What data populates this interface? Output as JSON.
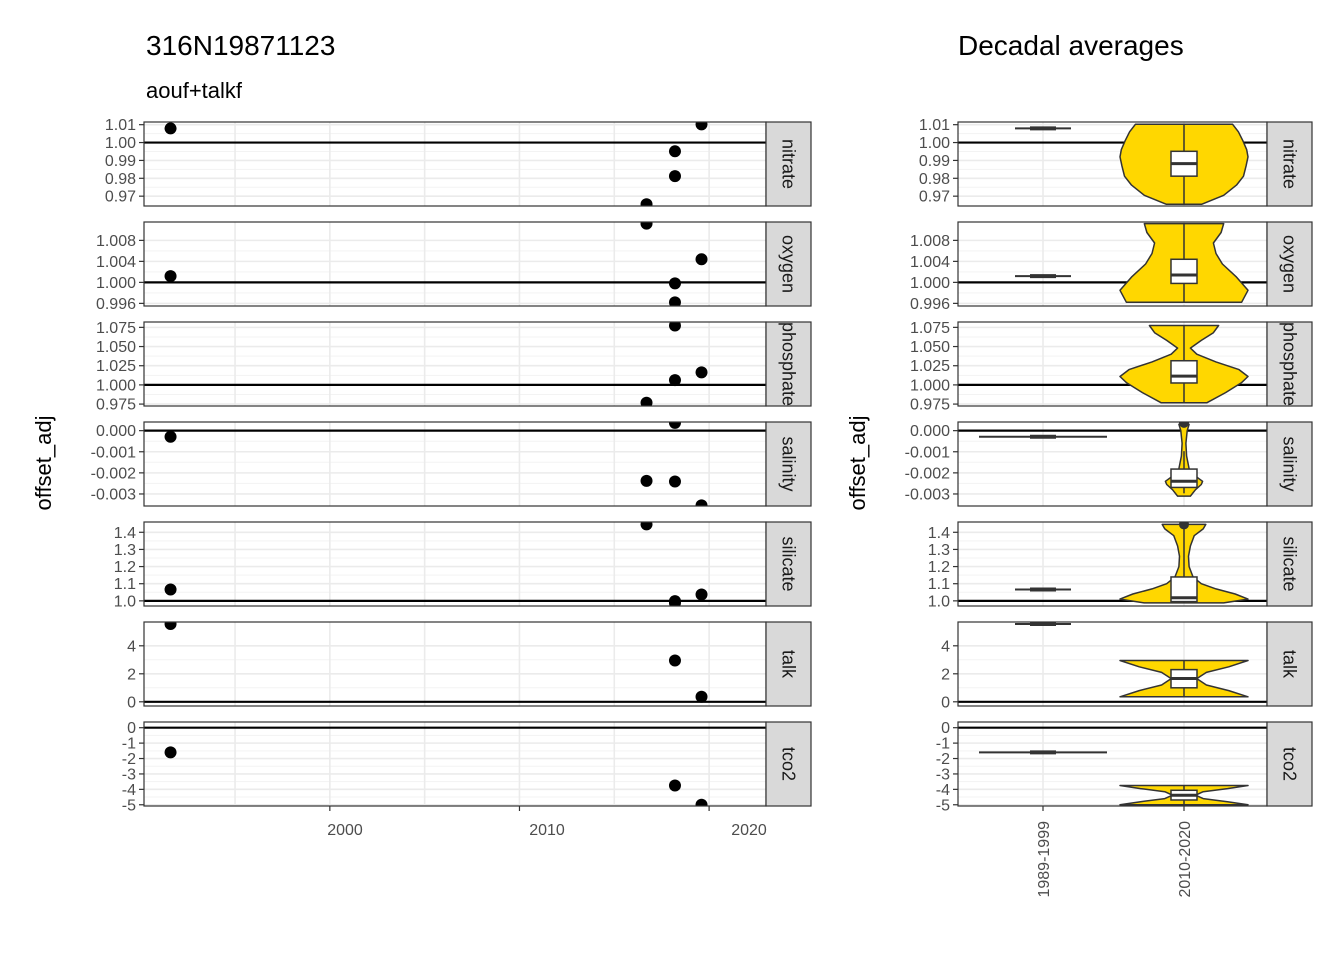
{
  "left": {
    "title": "316N19871123",
    "subtitle": "aouf+talkf",
    "ylabel": "offset_adj",
    "x_ticks": [
      "2000",
      "2010",
      "2020"
    ]
  },
  "right": {
    "title": "Decadal averages",
    "ylabel": "offset_adj",
    "x_ticks": [
      "1989-1999",
      "2010-2020"
    ]
  },
  "colors": {
    "fill": "#FFD700",
    "line": "#000000",
    "strip": "#d9d9d9",
    "grid": "#ebebeb"
  },
  "chart_data": [
    {
      "type": "scatter",
      "title": "316N19871123",
      "subtitle": "aouf+talkf",
      "xlabel": "",
      "ylabel": "offset_adj",
      "xlim": [
        1990.2,
        2023.0
      ],
      "x_ticks": [
        2000,
        2010,
        2020
      ],
      "reference_line": "y = 1 for ratio parameters, y = 0 for additive parameters",
      "facets": [
        {
          "name": "nitrate",
          "ylim": [
            0.9645,
            1.0115
          ],
          "yticks": [
            0.97,
            0.98,
            0.99,
            1.0,
            1.01
          ],
          "ytick_labels": [
            "0.97",
            "0.98",
            "0.99",
            "1.00",
            "1.01"
          ],
          "ref": 1.0,
          "points": [
            {
              "x": 1991.6,
              "y": 1.0079
            },
            {
              "x": 2016.7,
              "y": 0.9655
            },
            {
              "x": 2018.2,
              "y": 0.9951
            },
            {
              "x": 2018.2,
              "y": 0.9812
            },
            {
              "x": 2019.6,
              "y": 1.0102
            }
          ]
        },
        {
          "name": "oxygen",
          "ylim": [
            0.9955,
            1.0115
          ],
          "yticks": [
            0.996,
            1.0,
            1.004,
            1.008
          ],
          "ytick_labels": [
            "0.996",
            "1.000",
            "1.004",
            "1.008"
          ],
          "ref": 1.0,
          "points": [
            {
              "x": 1991.6,
              "y": 1.0012
            },
            {
              "x": 2016.7,
              "y": 1.0112
            },
            {
              "x": 2018.2,
              "y": 0.9998
            },
            {
              "x": 2018.2,
              "y": 0.9962
            },
            {
              "x": 2019.6,
              "y": 1.0044
            }
          ]
        },
        {
          "name": "phosphate",
          "ylim": [
            0.9725,
            1.082
          ],
          "yticks": [
            0.975,
            1.0,
            1.025,
            1.05,
            1.075
          ],
          "ytick_labels": [
            "0.975",
            "1.000",
            "1.025",
            "1.050",
            "1.075"
          ],
          "ref": 1.0,
          "points": [
            {
              "x": 2016.7,
              "y": 0.9768
            },
            {
              "x": 2018.2,
              "y": 1.0775
            },
            {
              "x": 2018.2,
              "y": 1.0063
            },
            {
              "x": 2019.6,
              "y": 1.0164
            }
          ]
        },
        {
          "name": "salinity",
          "ylim": [
            -0.00357,
            0.00041
          ],
          "yticks": [
            -0.003,
            -0.002,
            -0.001,
            0.0
          ],
          "ytick_labels": [
            "-0.003",
            "-0.002",
            "-0.001",
            "0.000"
          ],
          "ref": 0.0,
          "points": [
            {
              "x": 1991.6,
              "y": -0.00029
            },
            {
              "x": 2016.7,
              "y": -0.00238
            },
            {
              "x": 2018.2,
              "y": 0.00037
            },
            {
              "x": 2018.2,
              "y": -0.00241
            },
            {
              "x": 2019.6,
              "y": -0.00354
            }
          ]
        },
        {
          "name": "silicate",
          "ylim": [
            0.97,
            1.46
          ],
          "yticks": [
            1.0,
            1.1,
            1.2,
            1.3,
            1.4
          ],
          "ytick_labels": [
            "1.0",
            "1.1",
            "1.2",
            "1.3",
            "1.4"
          ],
          "ref": 1.0,
          "points": [
            {
              "x": 1991.6,
              "y": 1.0665
            },
            {
              "x": 2016.7,
              "y": 1.4458
            },
            {
              "x": 2018.2,
              "y": 0.9982
            },
            {
              "x": 2018.2,
              "y": 0.9878
            },
            {
              "x": 2019.6,
              "y": 1.0373
            }
          ]
        },
        {
          "name": "talk",
          "ylim": [
            -0.3,
            5.7
          ],
          "yticks": [
            0,
            2,
            4
          ],
          "ytick_labels": [
            "0",
            "2",
            "4"
          ],
          "ref": 0.0,
          "points": [
            {
              "x": 1991.6,
              "y": 5.56
            },
            {
              "x": 2018.2,
              "y": 2.95
            },
            {
              "x": 2019.6,
              "y": 0.36
            }
          ]
        },
        {
          "name": "tco2",
          "ylim": [
            -5.08,
            0.37
          ],
          "yticks": [
            -5,
            -4,
            -3,
            -2,
            -1,
            0
          ],
          "ytick_labels": [
            "-5",
            "-4",
            "-3",
            "-2",
            "-1",
            "0"
          ],
          "ref": 0.0,
          "points": [
            {
              "x": 1991.6,
              "y": -1.6
            },
            {
              "x": 2018.2,
              "y": -3.75
            },
            {
              "x": 2019.6,
              "y": -5.0
            }
          ]
        }
      ]
    },
    {
      "type": "violin_box",
      "title": "Decadal averages",
      "xlabel": "",
      "ylabel": "offset_adj",
      "categories": [
        "1989-1999",
        "2010-2020"
      ],
      "facets": [
        {
          "name": "nitrate",
          "ylim": [
            0.9645,
            1.0115
          ],
          "yticks": [
            0.97,
            0.98,
            0.99,
            1.0,
            1.01
          ],
          "ytick_labels": [
            "0.97",
            "0.98",
            "0.99",
            "1.00",
            "1.01"
          ],
          "ref": 1.0,
          "groups": [
            {
              "cat": "1989-1999",
              "values": [
                1.0079
              ]
            },
            {
              "cat": "2010-2020",
              "values": [
                0.9655,
                0.9812,
                0.9951,
                1.0102
              ],
              "box": {
                "min": 0.9655,
                "q1": 0.9812,
                "median": 0.9882,
                "q3": 0.9951,
                "max": 1.0102
              },
              "violin": [
                [
                  0.9655,
                  0.28
                ],
                [
                  0.9705,
                  0.62
                ],
                [
                  0.9762,
                  0.82
                ],
                [
                  0.9812,
                  0.93
                ],
                [
                  0.987,
                  0.97
                ],
                [
                  0.992,
                  1.0
                ],
                [
                  0.996,
                  0.98
                ],
                [
                  1.001,
                  0.92
                ],
                [
                  1.006,
                  0.85
                ],
                [
                  1.0102,
                  0.76
                ]
              ]
            }
          ]
        },
        {
          "name": "oxygen",
          "ylim": [
            0.9955,
            1.0115
          ],
          "yticks": [
            0.996,
            1.0,
            1.004,
            1.008
          ],
          "ytick_labels": [
            "0.996",
            "1.000",
            "1.004",
            "1.008"
          ],
          "ref": 1.0,
          "groups": [
            {
              "cat": "1989-1999",
              "values": [
                1.0012
              ]
            },
            {
              "cat": "2010-2020",
              "values": [
                0.9962,
                0.9998,
                1.0044,
                1.0112
              ],
              "box": {
                "min": 0.9962,
                "q1": 0.9998,
                "median": 1.0014,
                "q3": 1.0044,
                "max": 1.0112
              },
              "violin": [
                [
                  0.9962,
                  0.9
                ],
                [
                  0.9985,
                  1.0
                ],
                [
                  1.001,
                  0.82
                ],
                [
                  1.0035,
                  0.6
                ],
                [
                  1.0055,
                  0.5
                ],
                [
                  1.0075,
                  0.46
                ],
                [
                  1.0095,
                  0.58
                ],
                [
                  1.0112,
                  0.62
                ]
              ]
            }
          ]
        },
        {
          "name": "phosphate",
          "ylim": [
            0.9725,
            1.082
          ],
          "yticks": [
            0.975,
            1.0,
            1.025,
            1.05,
            1.075
          ],
          "ytick_labels": [
            "0.975",
            "1.000",
            "1.025",
            "1.050",
            "1.075"
          ],
          "ref": 1.0,
          "groups": [
            {
              "cat": "2010-2020",
              "values": [
                0.9768,
                1.0063,
                1.0164,
                1.0775
              ],
              "box": {
                "min": 0.9768,
                "q1": 1.0025,
                "median": 1.0114,
                "q3": 1.0315,
                "max": 1.0775
              },
              "violin": [
                [
                  0.9768,
                  0.36
                ],
                [
                  0.99,
                  0.65
                ],
                [
                  1.003,
                  0.9
                ],
                [
                  1.011,
                  1.0
                ],
                [
                  1.02,
                  0.86
                ],
                [
                  1.03,
                  0.5
                ],
                [
                  1.04,
                  0.2
                ],
                [
                  1.048,
                  0.1
                ],
                [
                  1.058,
                  0.27
                ],
                [
                  1.068,
                  0.46
                ],
                [
                  1.0775,
                  0.54
                ]
              ]
            }
          ]
        },
        {
          "name": "salinity",
          "ylim": [
            -0.00357,
            0.00041
          ],
          "yticks": [
            -0.003,
            -0.002,
            -0.001,
            0.0
          ],
          "ytick_labels": [
            "-0.003",
            "-0.002",
            "-0.001",
            "0.000"
          ],
          "ref": 0.0,
          "groups": [
            {
              "cat": "1989-1999",
              "values": [
                -0.00029
              ]
            },
            {
              "cat": "2010-2020",
              "values": [
                -0.00354,
                -0.00241,
                -0.00238,
                0.00037
              ],
              "box": {
                "min": -0.00297,
                "q1": -0.00269,
                "median": -0.0024,
                "q3": -0.00182,
                "max": -0.00097
              },
              "outliers": [
                0.00037
              ],
              "violin": [
                [
                  -0.0031,
                  0.1
                ],
                [
                  -0.0028,
                  0.18
                ],
                [
                  -0.00255,
                  0.27
                ],
                [
                  -0.0024,
                  0.29
                ],
                [
                  -0.0022,
                  0.2
                ],
                [
                  -0.0018,
                  0.08
                ],
                [
                  -0.0012,
                  0.04
                ],
                [
                  -0.0006,
                  0.03
                ],
                [
                  0.0,
                  0.05
                ],
                [
                  0.0003,
                  0.08
                ]
              ]
            }
          ]
        },
        {
          "name": "silicate",
          "ylim": [
            0.97,
            1.46
          ],
          "yticks": [
            1.0,
            1.1,
            1.2,
            1.3,
            1.4
          ],
          "ytick_labels": [
            "1.0",
            "1.1",
            "1.2",
            "1.3",
            "1.4"
          ],
          "ref": 1.0,
          "groups": [
            {
              "cat": "1989-1999",
              "values": [
                1.0665
              ]
            },
            {
              "cat": "2010-2020",
              "values": [
                0.9878,
                0.9982,
                1.0373,
                1.4458
              ],
              "box": {
                "min": 0.9878,
                "q1": 0.9956,
                "median": 1.0178,
                "q3": 1.1394,
                "max": 1.4458
              },
              "outliers": [
                1.4458
              ],
              "violin": [
                [
                  0.9878,
                  0.62
                ],
                [
                  1.01,
                  1.0
                ],
                [
                  1.04,
                  0.8
                ],
                [
                  1.07,
                  0.5
                ],
                [
                  1.1,
                  0.27
                ],
                [
                  1.14,
                  0.14
                ],
                [
                  1.2,
                  0.08
                ],
                [
                  1.26,
                  0.07
                ],
                [
                  1.32,
                  0.1
                ],
                [
                  1.38,
                  0.16
                ],
                [
                  1.42,
                  0.3
                ],
                [
                  1.4458,
                  0.34
                ]
              ]
            }
          ]
        },
        {
          "name": "talk",
          "ylim": [
            -0.3,
            5.7
          ],
          "yticks": [
            0,
            2,
            4
          ],
          "ytick_labels": [
            "0",
            "2",
            "4"
          ],
          "ref": 0.0,
          "groups": [
            {
              "cat": "1989-1999",
              "values": [
                5.56
              ]
            },
            {
              "cat": "2010-2020",
              "values": [
                0.36,
                2.95
              ],
              "box": {
                "min": 0.36,
                "q1": 1.0,
                "median": 1.66,
                "q3": 2.3,
                "max": 2.95
              },
              "violin": [
                [
                  0.36,
                  1.0
                ],
                [
                  0.8,
                  0.7
                ],
                [
                  1.2,
                  0.35
                ],
                [
                  1.66,
                  0.2
                ],
                [
                  2.1,
                  0.35
                ],
                [
                  2.5,
                  0.7
                ],
                [
                  2.95,
                  1.0
                ]
              ]
            }
          ]
        },
        {
          "name": "tco2",
          "ylim": [
            -5.08,
            0.37
          ],
          "yticks": [
            -5,
            -4,
            -3,
            -2,
            -1,
            0
          ],
          "ytick_labels": [
            "-5",
            "-4",
            "-3",
            "-2",
            "-1",
            "0"
          ],
          "ref": 0.0,
          "groups": [
            {
              "cat": "1989-1999",
              "values": [
                -1.6
              ]
            },
            {
              "cat": "2010-2020",
              "values": [
                -5.0,
                -3.75
              ],
              "box": {
                "min": -5.0,
                "q1": -4.69,
                "median": -4.38,
                "q3": -4.06,
                "max": -3.75
              },
              "violin": [
                [
                  -5.0,
                  1.0
                ],
                [
                  -4.8,
                  0.68
                ],
                [
                  -4.6,
                  0.3
                ],
                [
                  -4.38,
                  0.18
                ],
                [
                  -4.15,
                  0.3
                ],
                [
                  -3.95,
                  0.68
                ],
                [
                  -3.75,
                  1.0
                ]
              ]
            }
          ]
        }
      ]
    }
  ]
}
